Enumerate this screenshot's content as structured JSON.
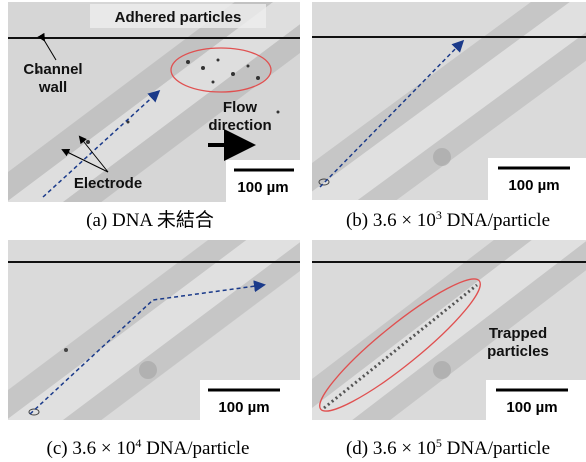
{
  "panels": [
    {
      "label": "(a)",
      "caption": "DNA 未結合",
      "scale_bar": "100 µm",
      "annotations": {
        "adhered": "Adhered particles",
        "wall": [
          "Channel",
          "wall"
        ],
        "flow": [
          "Flow",
          "direction"
        ],
        "electrode": "Electrode"
      }
    },
    {
      "label": "(b)",
      "caption": "3.6 × 10",
      "exponent": "3",
      "unit": "DNA/particle",
      "scale_bar": "100 µm"
    },
    {
      "label": "(c)",
      "caption": "3.6 × 10",
      "exponent": "4",
      "unit": "DNA/particle",
      "scale_bar": "100 µm"
    },
    {
      "label": "(d)",
      "caption": "3.6 × 10",
      "exponent": "5",
      "unit": "DNA/particle",
      "scale_bar": "100 µm",
      "annotations": {
        "trapped": [
          "Trapped",
          "particles"
        ]
      }
    }
  ]
}
